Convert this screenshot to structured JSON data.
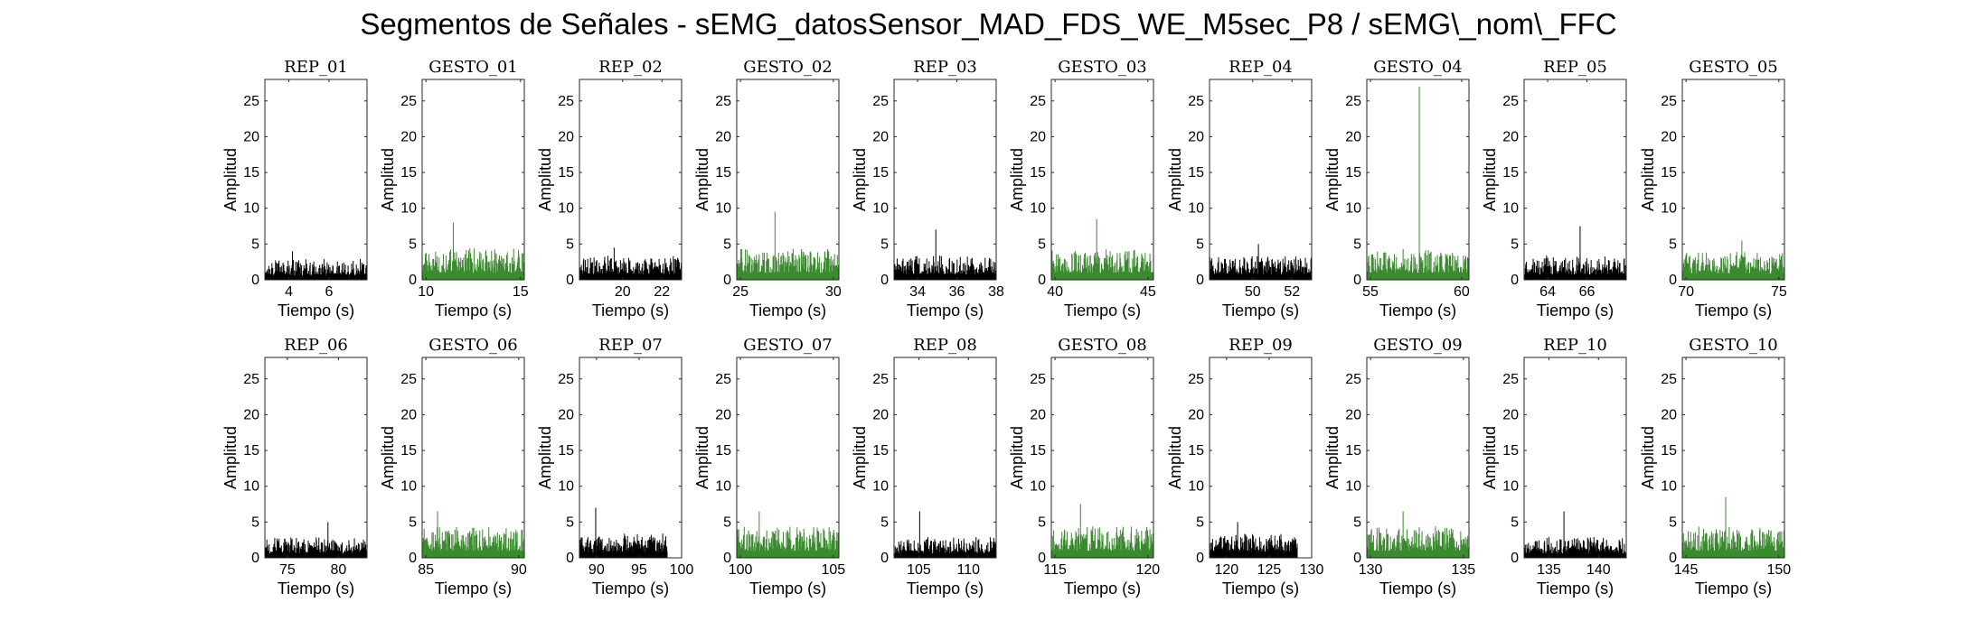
{
  "figure": {
    "title": "Segmentos de Señales - sEMG_datosSensor_MAD_FDS_WE_M5sec_P8 / sEMG\\_nom\\_FFC"
  },
  "colors": {
    "rep": "#000000",
    "gesto": "#3a8a2e"
  },
  "chart_data": [
    {
      "type": "line",
      "title": "REP_01",
      "kind": "rep",
      "xlabel": "Tiempo (s)",
      "ylabel": "Amplitud",
      "xlim": [
        2.8,
        7.9
      ],
      "ylim": [
        0,
        28
      ],
      "xticks": [
        4,
        6
      ],
      "yticks": [
        0,
        5,
        10,
        15,
        20,
        25
      ],
      "series": [
        {
          "x_range": [
            2.8,
            7.9
          ],
          "typical_peak": 2.5,
          "max_peak": 4
        }
      ],
      "data_end": 7.9
    },
    {
      "type": "line",
      "title": "GESTO_01",
      "kind": "gesto",
      "xlabel": "Tiempo (s)",
      "ylabel": "Amplitud",
      "xlim": [
        9.8,
        15.2
      ],
      "ylim": [
        0,
        28
      ],
      "xticks": [
        10,
        15
      ],
      "yticks": [
        0,
        5,
        10,
        15,
        20,
        25
      ],
      "series": [
        {
          "x_range": [
            9.8,
            15.2
          ],
          "typical_peak": 4,
          "max_peak": 8
        }
      ],
      "data_end": 15.2
    },
    {
      "type": "line",
      "title": "REP_02",
      "kind": "rep",
      "xlabel": "Tiempo (s)",
      "ylabel": "Amplitud",
      "xlim": [
        17.8,
        23.0
      ],
      "ylim": [
        0,
        28
      ],
      "xticks": [
        20,
        22
      ],
      "yticks": [
        0,
        5,
        10,
        15,
        20,
        25
      ],
      "series": [
        {
          "x_range": [
            17.8,
            23.0
          ],
          "typical_peak": 3,
          "max_peak": 4.5
        }
      ],
      "data_end": 23.0
    },
    {
      "type": "line",
      "title": "GESTO_02",
      "kind": "gesto",
      "xlabel": "Tiempo (s)",
      "ylabel": "Amplitud",
      "xlim": [
        24.8,
        30.3
      ],
      "ylim": [
        0,
        28
      ],
      "xticks": [
        25,
        30
      ],
      "yticks": [
        0,
        5,
        10,
        15,
        20,
        25
      ],
      "series": [
        {
          "x_range": [
            24.8,
            30.3
          ],
          "typical_peak": 4,
          "max_peak": 9.5
        }
      ],
      "data_end": 30.3
    },
    {
      "type": "line",
      "title": "REP_03",
      "kind": "rep",
      "xlabel": "Tiempo (s)",
      "ylabel": "Amplitud",
      "xlim": [
        32.8,
        38.0
      ],
      "ylim": [
        0,
        28
      ],
      "xticks": [
        34,
        36,
        38
      ],
      "yticks": [
        0,
        5,
        10,
        15,
        20,
        25
      ],
      "series": [
        {
          "x_range": [
            32.8,
            38.0
          ],
          "typical_peak": 3,
          "max_peak": 7
        }
      ],
      "data_end": 38.0
    },
    {
      "type": "line",
      "title": "GESTO_03",
      "kind": "gesto",
      "xlabel": "Tiempo (s)",
      "ylabel": "Amplitud",
      "xlim": [
        39.8,
        45.3
      ],
      "ylim": [
        0,
        28
      ],
      "xticks": [
        40,
        45
      ],
      "yticks": [
        0,
        5,
        10,
        15,
        20,
        25
      ],
      "series": [
        {
          "x_range": [
            39.8,
            45.3
          ],
          "typical_peak": 4,
          "max_peak": 8.5
        }
      ],
      "data_end": 45.3
    },
    {
      "type": "line",
      "title": "REP_04",
      "kind": "rep",
      "xlabel": "Tiempo (s)",
      "ylabel": "Amplitud",
      "xlim": [
        47.8,
        53.0
      ],
      "ylim": [
        0,
        28
      ],
      "xticks": [
        50,
        52
      ],
      "yticks": [
        0,
        5,
        10,
        15,
        20,
        25
      ],
      "series": [
        {
          "x_range": [
            47.8,
            53.0
          ],
          "typical_peak": 3,
          "max_peak": 5
        }
      ],
      "data_end": 53.0
    },
    {
      "type": "line",
      "title": "GESTO_04",
      "kind": "gesto",
      "xlabel": "Tiempo (s)",
      "ylabel": "Amplitud",
      "xlim": [
        54.8,
        60.4
      ],
      "ylim": [
        0,
        28
      ],
      "xticks": [
        55,
        60
      ],
      "yticks": [
        0,
        5,
        10,
        15,
        20,
        25
      ],
      "series": [
        {
          "x_range": [
            54.8,
            60.4
          ],
          "typical_peak": 4,
          "max_peak": 27
        }
      ],
      "data_end": 60.4
    },
    {
      "type": "line",
      "title": "REP_05",
      "kind": "rep",
      "xlabel": "Tiempo (s)",
      "ylabel": "Amplitud",
      "xlim": [
        62.8,
        68.0
      ],
      "ylim": [
        0,
        28
      ],
      "xticks": [
        64,
        66
      ],
      "yticks": [
        0,
        5,
        10,
        15,
        20,
        25
      ],
      "series": [
        {
          "x_range": [
            62.8,
            68.0
          ],
          "typical_peak": 3,
          "max_peak": 7.5
        }
      ],
      "data_end": 68.0
    },
    {
      "type": "line",
      "title": "GESTO_05",
      "kind": "gesto",
      "xlabel": "Tiempo (s)",
      "ylabel": "Amplitud",
      "xlim": [
        69.8,
        75.3
      ],
      "ylim": [
        0,
        28
      ],
      "xticks": [
        70,
        75
      ],
      "yticks": [
        0,
        5,
        10,
        15,
        20,
        25
      ],
      "series": [
        {
          "x_range": [
            69.8,
            75.3
          ],
          "typical_peak": 3.5,
          "max_peak": 5.5
        }
      ],
      "data_end": 75.3
    },
    {
      "type": "line",
      "title": "REP_06",
      "kind": "rep",
      "xlabel": "Tiempo (s)",
      "ylabel": "Amplitud",
      "xlim": [
        72.8,
        82.8
      ],
      "ylim": [
        0,
        28
      ],
      "xticks": [
        75,
        80
      ],
      "yticks": [
        0,
        5,
        10,
        15,
        20,
        25
      ],
      "series": [
        {
          "x_range": [
            72.8,
            82.8
          ],
          "typical_peak": 2.5,
          "max_peak": 5
        }
      ],
      "data_end": 82.8
    },
    {
      "type": "line",
      "title": "GESTO_06",
      "kind": "gesto",
      "xlabel": "Tiempo (s)",
      "ylabel": "Amplitud",
      "xlim": [
        84.8,
        90.3
      ],
      "ylim": [
        0,
        28
      ],
      "xticks": [
        85,
        90
      ],
      "yticks": [
        0,
        5,
        10,
        15,
        20,
        25
      ],
      "series": [
        {
          "x_range": [
            84.8,
            90.3
          ],
          "typical_peak": 4,
          "max_peak": 6.5
        }
      ],
      "data_end": 90.3
    },
    {
      "type": "line",
      "title": "REP_07",
      "kind": "rep",
      "xlabel": "Tiempo (s)",
      "ylabel": "Amplitud",
      "xlim": [
        88,
        100
      ],
      "ylim": [
        0,
        28
      ],
      "xticks": [
        90,
        95,
        100
      ],
      "yticks": [
        0,
        5,
        10,
        15,
        20,
        25
      ],
      "series": [
        {
          "x_range": [
            88,
            98.3
          ],
          "typical_peak": 3,
          "max_peak": 7
        }
      ],
      "data_end": 98.3
    },
    {
      "type": "line",
      "title": "GESTO_07",
      "kind": "gesto",
      "xlabel": "Tiempo (s)",
      "ylabel": "Amplitud",
      "xlim": [
        99.8,
        105.3
      ],
      "ylim": [
        0,
        28
      ],
      "xticks": [
        100,
        105
      ],
      "yticks": [
        0,
        5,
        10,
        15,
        20,
        25
      ],
      "series": [
        {
          "x_range": [
            99.8,
            105.3
          ],
          "typical_peak": 4,
          "max_peak": 6.5
        }
      ],
      "data_end": 105.3
    },
    {
      "type": "line",
      "title": "REP_08",
      "kind": "rep",
      "xlabel": "Tiempo (s)",
      "ylabel": "Amplitud",
      "xlim": [
        102.5,
        112.8
      ],
      "ylim": [
        0,
        28
      ],
      "xticks": [
        105,
        110
      ],
      "yticks": [
        0,
        5,
        10,
        15,
        20,
        25
      ],
      "series": [
        {
          "x_range": [
            102.5,
            112.8
          ],
          "typical_peak": 2.5,
          "max_peak": 6.5
        }
      ],
      "data_end": 112.8
    },
    {
      "type": "line",
      "title": "GESTO_08",
      "kind": "gesto",
      "xlabel": "Tiempo (s)",
      "ylabel": "Amplitud",
      "xlim": [
        114.8,
        120.3
      ],
      "ylim": [
        0,
        28
      ],
      "xticks": [
        115,
        120
      ],
      "yticks": [
        0,
        5,
        10,
        15,
        20,
        25
      ],
      "series": [
        {
          "x_range": [
            114.8,
            120.3
          ],
          "typical_peak": 4,
          "max_peak": 7.5
        }
      ],
      "data_end": 120.3
    },
    {
      "type": "line",
      "title": "REP_09",
      "kind": "rep",
      "xlabel": "Tiempo (s)",
      "ylabel": "Amplitud",
      "xlim": [
        118,
        130
      ],
      "ylim": [
        0,
        28
      ],
      "xticks": [
        120,
        125,
        130
      ],
      "yticks": [
        0,
        5,
        10,
        15,
        20,
        25
      ],
      "series": [
        {
          "x_range": [
            118,
            128.3
          ],
          "typical_peak": 3,
          "max_peak": 5
        }
      ],
      "data_end": 128.3
    },
    {
      "type": "line",
      "title": "GESTO_09",
      "kind": "gesto",
      "xlabel": "Tiempo (s)",
      "ylabel": "Amplitud",
      "xlim": [
        129.8,
        135.3
      ],
      "ylim": [
        0,
        28
      ],
      "xticks": [
        130,
        135
      ],
      "yticks": [
        0,
        5,
        10,
        15,
        20,
        25
      ],
      "series": [
        {
          "x_range": [
            129.8,
            135.3
          ],
          "typical_peak": 4,
          "max_peak": 6.5
        }
      ],
      "data_end": 135.3
    },
    {
      "type": "line",
      "title": "REP_10",
      "kind": "rep",
      "xlabel": "Tiempo (s)",
      "ylabel": "Amplitud",
      "xlim": [
        132.5,
        142.8
      ],
      "ylim": [
        0,
        28
      ],
      "xticks": [
        135,
        140
      ],
      "yticks": [
        0,
        5,
        10,
        15,
        20,
        25
      ],
      "series": [
        {
          "x_range": [
            132.5,
            142.8
          ],
          "typical_peak": 2.5,
          "max_peak": 6.5
        }
      ],
      "data_end": 142.8
    },
    {
      "type": "line",
      "title": "GESTO_10",
      "kind": "gesto",
      "xlabel": "Tiempo (s)",
      "ylabel": "Amplitud",
      "xlim": [
        144.8,
        150.3
      ],
      "ylim": [
        0,
        28
      ],
      "xticks": [
        145,
        150
      ],
      "yticks": [
        0,
        5,
        10,
        15,
        20,
        25
      ],
      "series": [
        {
          "x_range": [
            144.8,
            150.3
          ],
          "typical_peak": 4,
          "max_peak": 8.5
        }
      ],
      "data_end": 150.3
    }
  ]
}
